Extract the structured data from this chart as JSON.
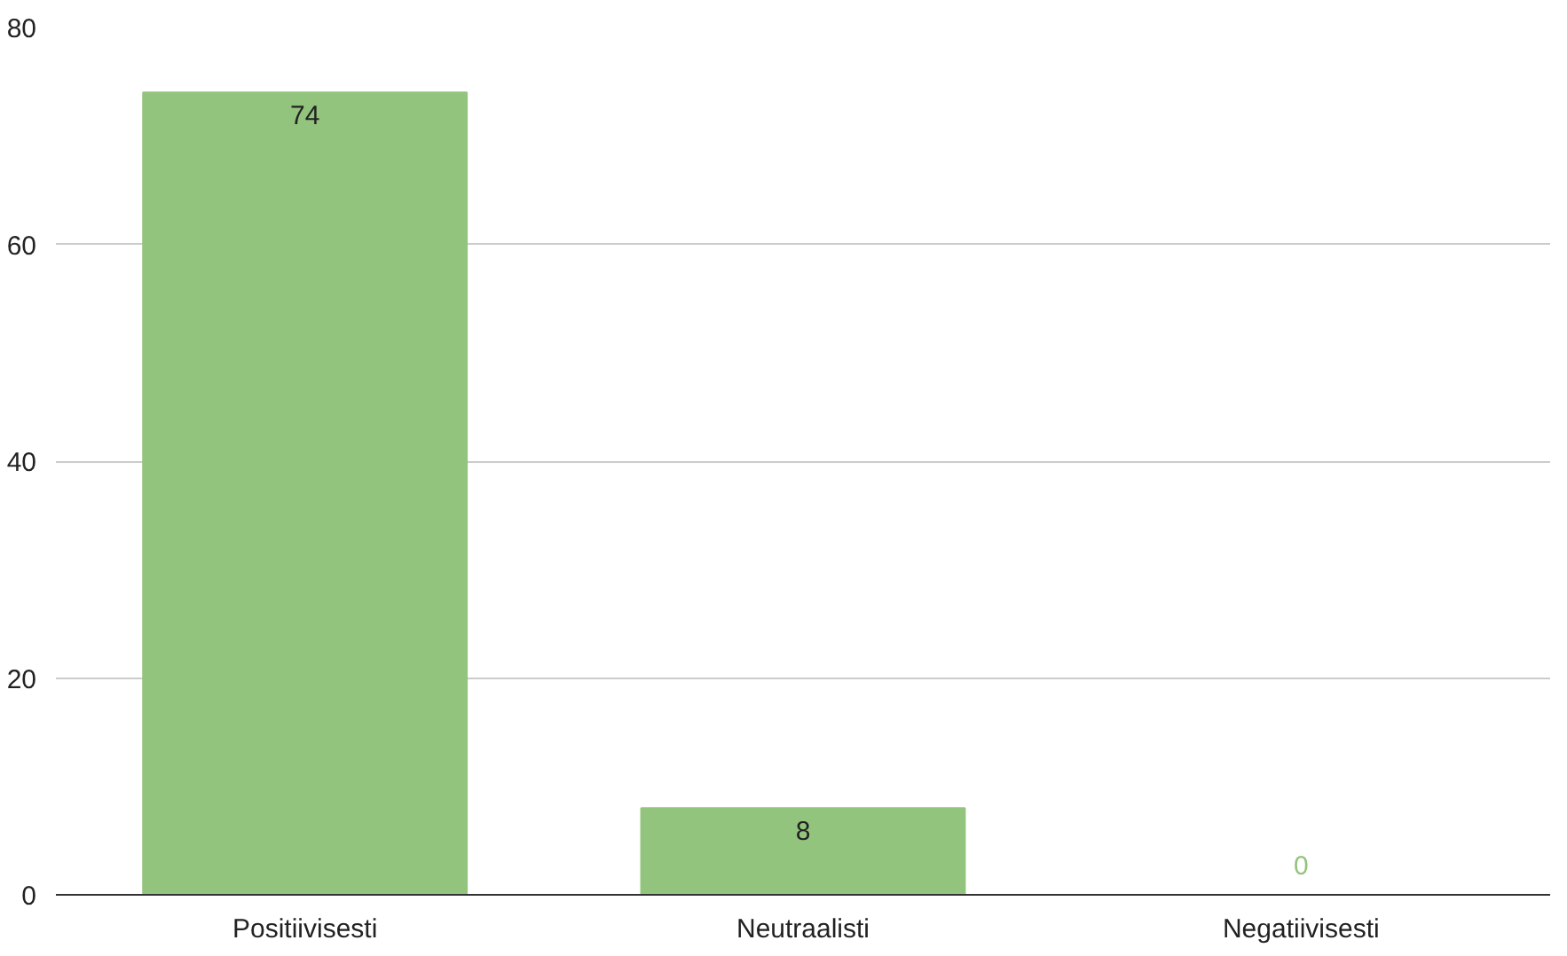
{
  "chart_data": {
    "type": "bar",
    "categories": [
      "Positiivisesti",
      "Neutraalisti",
      "Negatiivisesti"
    ],
    "values": [
      74,
      8,
      0
    ],
    "color": "#93c47d",
    "ylim": [
      0,
      80
    ],
    "yticks": [
      0,
      20,
      40,
      60,
      80
    ],
    "grid": "y",
    "data_labels": true
  }
}
